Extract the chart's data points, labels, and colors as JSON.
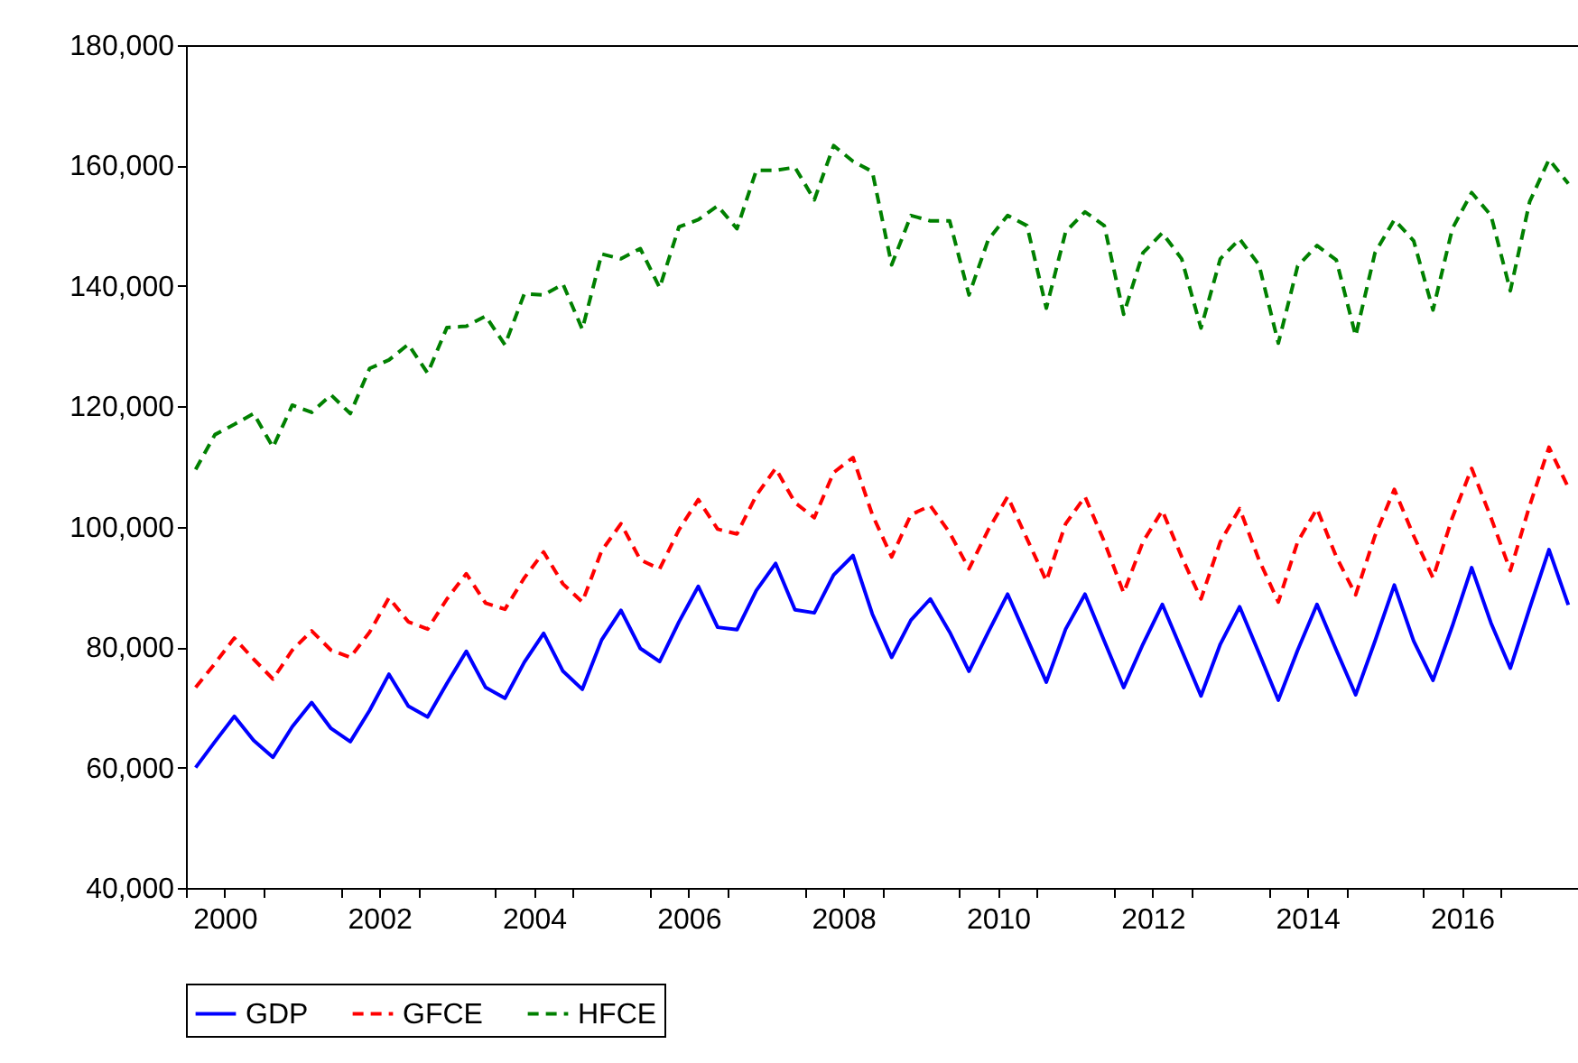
{
  "chart_data": {
    "type": "line",
    "x": [
      2000.125,
      2000.375,
      2000.625,
      2000.875,
      2001.125,
      2001.375,
      2001.625,
      2001.875,
      2002.125,
      2002.375,
      2002.625,
      2002.875,
      2003.125,
      2003.375,
      2003.625,
      2003.875,
      2004.125,
      2004.375,
      2004.625,
      2004.875,
      2005.125,
      2005.375,
      2005.625,
      2005.875,
      2006.125,
      2006.375,
      2006.625,
      2006.875,
      2007.125,
      2007.375,
      2007.625,
      2007.875,
      2008.125,
      2008.375,
      2008.625,
      2008.875,
      2009.125,
      2009.375,
      2009.625,
      2009.875,
      2010.125,
      2010.375,
      2010.625,
      2010.875,
      2011.125,
      2011.375,
      2011.625,
      2011.875,
      2012.125,
      2012.375,
      2012.625,
      2012.875,
      2013.125,
      2013.375,
      2013.625,
      2013.875,
      2014.125,
      2014.375,
      2014.625,
      2014.875,
      2015.125,
      2015.375,
      2015.625,
      2015.875,
      2016.125,
      2016.375,
      2016.625,
      2016.875,
      2017.125,
      2017.375,
      2017.625,
      2017.875
    ],
    "series": [
      {
        "name": "GDP",
        "color": "#0000ff",
        "line_style": "solid",
        "values": [
          60000,
          64300,
          68500,
          64500,
          61700,
          66800,
          70800,
          66500,
          64300,
          69500,
          75500,
          70200,
          68400,
          74000,
          79300,
          73300,
          71500,
          77500,
          82300,
          76000,
          73000,
          81200,
          86100,
          79800,
          77600,
          84200,
          90100,
          83300,
          82900,
          89400,
          93900,
          86200,
          85700,
          92000,
          95200,
          85500,
          78300,
          84500,
          88000,
          82500,
          76000,
          82500,
          88800,
          81500,
          74200,
          83000,
          88800,
          81000,
          73300,
          80500,
          87100,
          79500,
          71900,
          80500,
          86700,
          79000,
          71200,
          79500,
          87100,
          79500,
          72100,
          81000,
          90300,
          81000,
          74500,
          83500,
          93200,
          84000,
          76500,
          86500,
          96200,
          87000
        ]
      },
      {
        "name": "GFCE",
        "color": "#ff0000",
        "line_style": "dashed",
        "values": [
          73300,
          77300,
          81500,
          78000,
          74700,
          79500,
          82700,
          79500,
          78300,
          82500,
          88200,
          84200,
          83000,
          88000,
          92200,
          87300,
          86300,
          91500,
          95800,
          90500,
          87500,
          96000,
          100500,
          94500,
          93000,
          99500,
          104500,
          99600,
          98800,
          105200,
          109700,
          104000,
          101500,
          109000,
          111500,
          102000,
          95000,
          102000,
          103500,
          99000,
          93000,
          99500,
          105000,
          98000,
          91000,
          100500,
          105000,
          97500,
          89000,
          97500,
          102700,
          95000,
          88000,
          97500,
          103000,
          94500,
          87500,
          97500,
          103000,
          95000,
          88700,
          98500,
          106200,
          98500,
          91500,
          101500,
          109700,
          101500,
          92700,
          103500,
          113200,
          106500
        ]
      },
      {
        "name": "HFCE",
        "color": "#008000",
        "line_style": "dashed",
        "values": [
          109500,
          115300,
          117000,
          118800,
          113200,
          120200,
          119000,
          121900,
          118800,
          126300,
          127700,
          130300,
          125500,
          133100,
          133300,
          135000,
          130200,
          138700,
          138500,
          140300,
          132800,
          145300,
          144500,
          146200,
          139700,
          149800,
          151000,
          153300,
          149500,
          159200,
          159200,
          159700,
          154300,
          163300,
          160700,
          159000,
          143500,
          151700,
          150800,
          150800,
          138500,
          147700,
          151700,
          150000,
          136300,
          149000,
          152300,
          150000,
          135300,
          145500,
          148800,
          144500,
          133000,
          144500,
          147800,
          143500,
          130500,
          143300,
          146700,
          144300,
          131700,
          145500,
          151000,
          147500,
          136000,
          149500,
          155500,
          151700,
          139200,
          154000,
          161000,
          157000
        ]
      }
    ],
    "xlim": [
      2000,
      2018
    ],
    "xticks": [
      {
        "value": 2000,
        "label": null
      },
      {
        "value": 2000.5,
        "label": "2000"
      },
      {
        "value": 2001,
        "label": null
      },
      {
        "value": 2002,
        "label": null
      },
      {
        "value": 2002.5,
        "label": "2002"
      },
      {
        "value": 2003,
        "label": null
      },
      {
        "value": 2004,
        "label": null
      },
      {
        "value": 2004.5,
        "label": "2004"
      },
      {
        "value": 2005,
        "label": null
      },
      {
        "value": 2006,
        "label": null
      },
      {
        "value": 2006.5,
        "label": "2006"
      },
      {
        "value": 2007,
        "label": null
      },
      {
        "value": 2008,
        "label": null
      },
      {
        "value": 2008.5,
        "label": "2008"
      },
      {
        "value": 2009,
        "label": null
      },
      {
        "value": 2010,
        "label": null
      },
      {
        "value": 2010.5,
        "label": "2010"
      },
      {
        "value": 2011,
        "label": null
      },
      {
        "value": 2012,
        "label": null
      },
      {
        "value": 2012.5,
        "label": "2012"
      },
      {
        "value": 2013,
        "label": null
      },
      {
        "value": 2014,
        "label": null
      },
      {
        "value": 2014.5,
        "label": "2014"
      },
      {
        "value": 2015,
        "label": null
      },
      {
        "value": 2016,
        "label": null
      },
      {
        "value": 2016.5,
        "label": "2016"
      },
      {
        "value": 2017,
        "label": null
      },
      {
        "value": 2018,
        "label": null
      }
    ],
    "ylim": [
      40000,
      180000
    ],
    "yticks": [
      {
        "value": 40000,
        "label": "40,000"
      },
      {
        "value": 60000,
        "label": "60,000"
      },
      {
        "value": 80000,
        "label": "80,000"
      },
      {
        "value": 100000,
        "label": "100,000"
      },
      {
        "value": 120000,
        "label": "120,000"
      },
      {
        "value": 140000,
        "label": "140,000"
      },
      {
        "value": 160000,
        "label": "160,000"
      },
      {
        "value": 180000,
        "label": "180,000"
      }
    ],
    "grid": false,
    "legend": "bottom",
    "marker": "none"
  }
}
